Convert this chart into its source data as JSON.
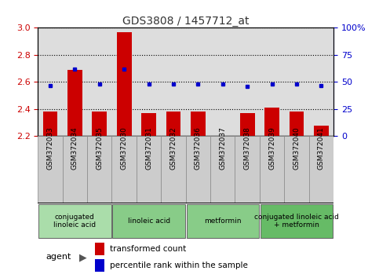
{
  "title": "GDS3808 / 1457712_at",
  "samples": [
    "GSM372033",
    "GSM372034",
    "GSM372035",
    "GSM372030",
    "GSM372031",
    "GSM372032",
    "GSM372036",
    "GSM372037",
    "GSM372038",
    "GSM372039",
    "GSM372040",
    "GSM372041"
  ],
  "transformed_count": [
    2.38,
    2.69,
    2.38,
    2.97,
    2.37,
    2.38,
    2.38,
    2.2,
    2.37,
    2.41,
    2.38,
    2.28
  ],
  "percentile_rank": [
    47,
    62,
    48,
    62,
    48,
    48,
    48,
    48,
    46,
    48,
    48,
    47
  ],
  "ylim_left": [
    2.2,
    3.0
  ],
  "ylim_right": [
    0,
    100
  ],
  "yticks_left": [
    2.2,
    2.4,
    2.6,
    2.8,
    3.0
  ],
  "yticks_right": [
    0,
    25,
    50,
    75,
    100
  ],
  "ytick_labels_right": [
    "0",
    "25",
    "50",
    "75",
    "100%"
  ],
  "bar_color": "#cc0000",
  "dot_color": "#0000cc",
  "bar_baseline": 2.2,
  "groups": [
    {
      "label": "conjugated\nlinoleic acid",
      "start": 0,
      "end": 3,
      "color": "#aaddaa"
    },
    {
      "label": "linoleic acid",
      "start": 3,
      "end": 6,
      "color": "#88cc88"
    },
    {
      "label": "metformin",
      "start": 6,
      "end": 9,
      "color": "#88cc88"
    },
    {
      "label": "conjugated linoleic acid\n+ metformin",
      "start": 9,
      "end": 12,
      "color": "#66bb66"
    }
  ],
  "legend_bar_label": "transformed count",
  "legend_dot_label": "percentile rank within the sample",
  "agent_label": "agent",
  "grid_color": "#000000",
  "background_color": "#ffffff",
  "axis_bg_color": "#dddddd",
  "sample_cell_color": "#cccccc",
  "tick_label_color_left": "#cc0000",
  "tick_label_color_right": "#0000cc",
  "title_color": "#333333"
}
